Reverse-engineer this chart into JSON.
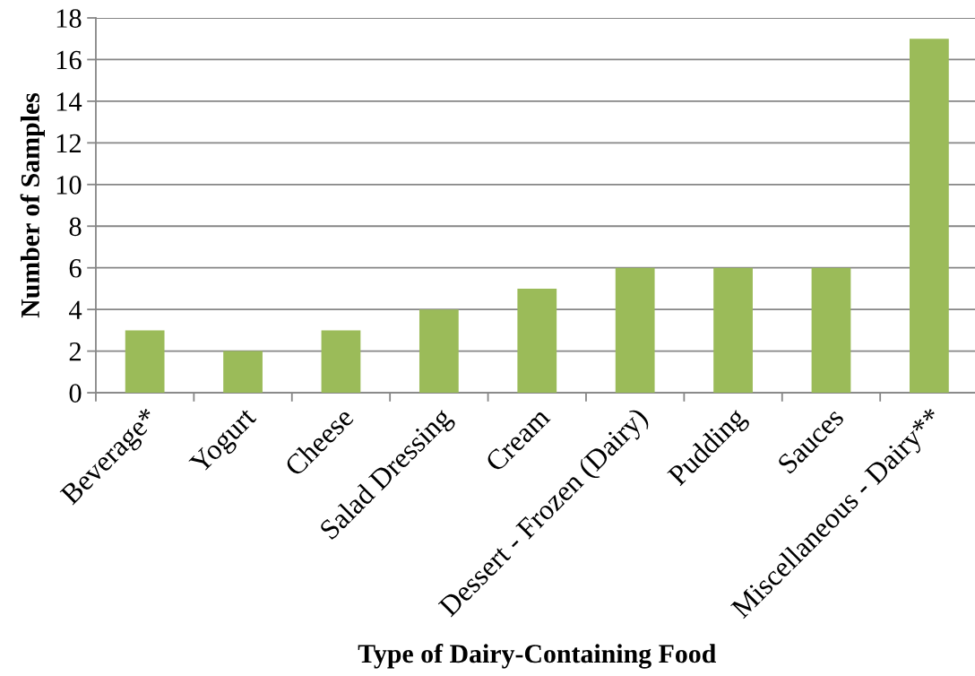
{
  "chart_data": {
    "type": "bar",
    "xlabel": "Type of Dairy-Containing Food",
    "ylabel": "Number of Samples",
    "categories": [
      "Beverage*",
      "Yogurt",
      "Cheese",
      "Salad Dressing",
      "Cream",
      "Dessert - Frozen (Dairy)",
      "Pudding",
      "Sauces",
      "Miscellaneous - Dairy**"
    ],
    "values": [
      3,
      2,
      3,
      4,
      5,
      6,
      6,
      6,
      17
    ],
    "color": "#9bbb59",
    "ylim": [
      0,
      18
    ],
    "yticks": [
      0,
      2,
      4,
      6,
      8,
      10,
      12,
      14,
      16,
      18
    ],
    "grid": "y"
  }
}
